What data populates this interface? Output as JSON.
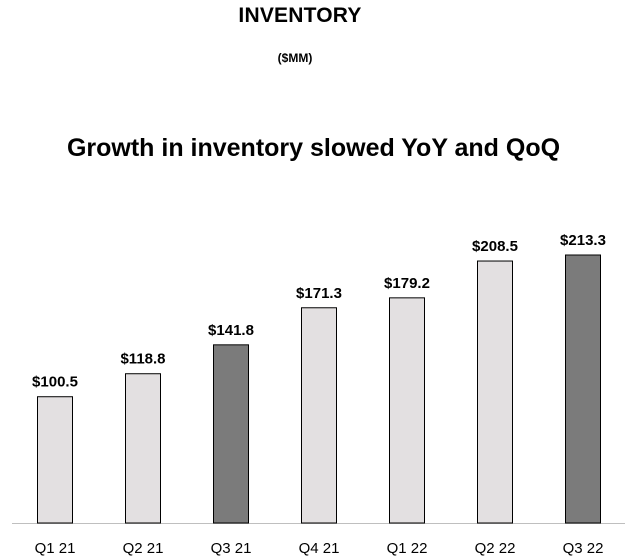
{
  "header": {
    "title": "INVENTORY",
    "subtitle": "($MM)",
    "headline": "Growth in inventory slowed YoY and QoQ"
  },
  "colors": {
    "light_bar": "#e3e0e1",
    "dark_bar": "#7b7b7b",
    "bar_stroke": "#000000",
    "axis": "#bfbfbf"
  },
  "chart_data": {
    "type": "bar",
    "title": "",
    "xlabel": "",
    "ylabel": "",
    "categories": [
      "Q1 21",
      "Q2 21",
      "Q3 21",
      "Q4 21",
      "Q1 22",
      "Q2 22",
      "Q3 22"
    ],
    "values": [
      100.5,
      118.8,
      141.8,
      171.3,
      179.2,
      208.5,
      213.3
    ],
    "value_labels": [
      "$100.5",
      "$118.8",
      "$141.8",
      "$171.3",
      "$179.2",
      "$208.5",
      "$213.3"
    ],
    "highlighted": [
      false,
      false,
      true,
      false,
      false,
      false,
      true
    ],
    "ylim": [
      0,
      213.3
    ],
    "grid": false,
    "legend": "none"
  }
}
